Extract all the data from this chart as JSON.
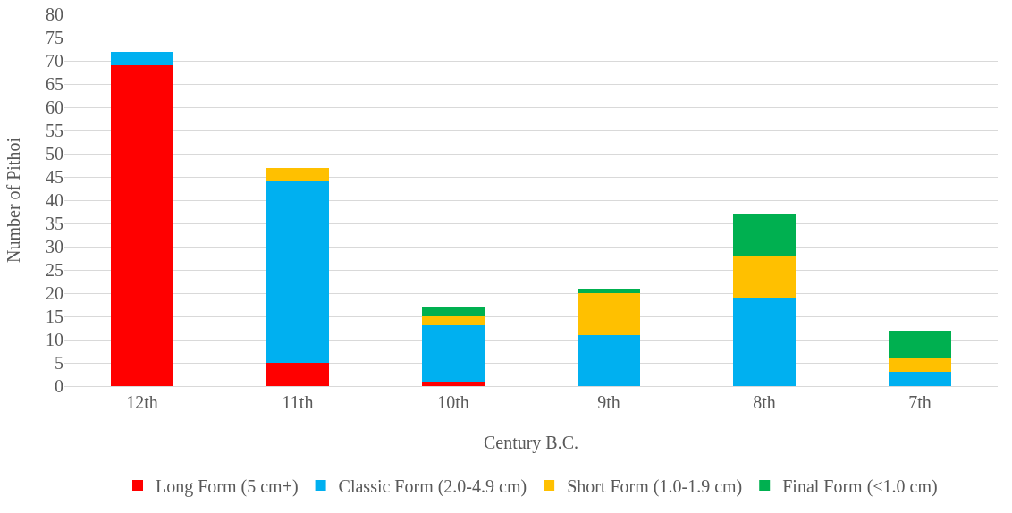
{
  "chart_data": {
    "type": "bar",
    "stacked": true,
    "xlabel": "Century B.C.",
    "ylabel": "Number of Pithoi",
    "categories": [
      "12th",
      "11th",
      "10th",
      "9th",
      "8th",
      "7th"
    ],
    "series": [
      {
        "name": "Long Form (5 cm+)",
        "color": "#ff0000",
        "values": [
          69,
          5,
          1,
          0,
          0,
          0
        ]
      },
      {
        "name": "Classic Form (2.0-4.9 cm)",
        "color": "#00b0f0",
        "values": [
          3,
          39,
          12,
          11,
          19,
          3
        ]
      },
      {
        "name": "Short Form (1.0-1.9 cm)",
        "color": "#ffc000",
        "values": [
          0,
          3,
          2,
          9,
          9,
          3
        ]
      },
      {
        "name": "Final Form (<1.0 cm)",
        "color": "#00b050",
        "values": [
          0,
          0,
          2,
          1,
          9,
          6
        ]
      }
    ],
    "ylim": [
      0,
      80
    ],
    "yticks": [
      0,
      5,
      10,
      15,
      20,
      25,
      30,
      35,
      40,
      45,
      50,
      55,
      60,
      65,
      70,
      75,
      80
    ],
    "grid": "y",
    "legend": "bottom"
  }
}
